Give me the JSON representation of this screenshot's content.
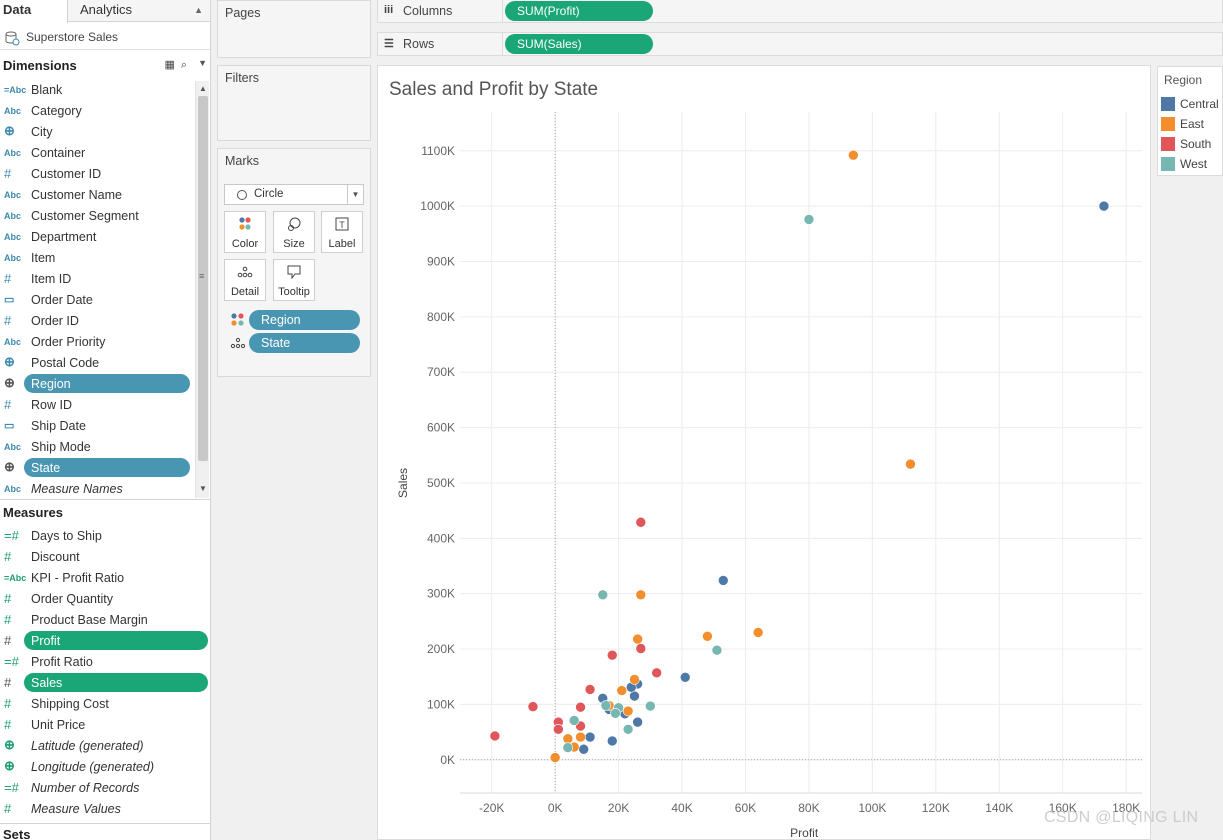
{
  "data_pane": {
    "tab_data": "Data",
    "tab_analytics": "Analytics",
    "datasource": "Superstore Sales",
    "dimensions_title": "Dimensions",
    "dimensions": [
      {
        "label": "Blank",
        "type": "=Abc"
      },
      {
        "label": "Category",
        "type": "Abc"
      },
      {
        "label": "City",
        "type": "globe"
      },
      {
        "label": "Container",
        "type": "Abc"
      },
      {
        "label": "Customer ID",
        "type": "#"
      },
      {
        "label": "Customer Name",
        "type": "Abc"
      },
      {
        "label": "Customer Segment",
        "type": "Abc"
      },
      {
        "label": "Department",
        "type": "Abc"
      },
      {
        "label": "Item",
        "type": "Abc"
      },
      {
        "label": "Item ID",
        "type": "#"
      },
      {
        "label": "Order Date",
        "type": "date"
      },
      {
        "label": "Order ID",
        "type": "#"
      },
      {
        "label": "Order Priority",
        "type": "Abc"
      },
      {
        "label": "Postal Code",
        "type": "globe"
      },
      {
        "label": "Region",
        "type": "globe",
        "selected": true
      },
      {
        "label": "Row ID",
        "type": "#"
      },
      {
        "label": "Ship Date",
        "type": "date"
      },
      {
        "label": "Ship Mode",
        "type": "Abc"
      },
      {
        "label": "State",
        "type": "globe",
        "selected": true
      },
      {
        "label": "Measure Names",
        "type": "Abc",
        "italic": true
      }
    ],
    "measures_title": "Measures",
    "measures": [
      {
        "label": "Days to Ship",
        "type": "=#"
      },
      {
        "label": "Discount",
        "type": "#"
      },
      {
        "label": "KPI - Profit Ratio",
        "type": "=Abc"
      },
      {
        "label": "Order Quantity",
        "type": "#"
      },
      {
        "label": "Product Base Margin",
        "type": "#"
      },
      {
        "label": "Profit",
        "type": "#",
        "selected": true
      },
      {
        "label": "Profit Ratio",
        "type": "=#"
      },
      {
        "label": "Sales",
        "type": "#",
        "selected": true
      },
      {
        "label": "Shipping Cost",
        "type": "#"
      },
      {
        "label": "Unit Price",
        "type": "#"
      },
      {
        "label": "Latitude (generated)",
        "type": "globe",
        "italic": true
      },
      {
        "label": "Longitude (generated)",
        "type": "globe",
        "italic": true
      },
      {
        "label": "Number of Records",
        "type": "=#",
        "italic": true
      },
      {
        "label": "Measure Values",
        "type": "#",
        "italic": true
      }
    ],
    "sets_title": "Sets"
  },
  "cards": {
    "pages": "Pages",
    "filters": "Filters",
    "marks": "Marks",
    "mark_type": "Circle",
    "buttons": {
      "color": "Color",
      "size": "Size",
      "label": "Label",
      "detail": "Detail",
      "tooltip": "Tooltip"
    },
    "mark_pills": [
      "Region",
      "State"
    ]
  },
  "shelves": {
    "columns_label": "Columns",
    "columns_pill": "SUM(Profit)",
    "rows_label": "Rows",
    "rows_pill": "SUM(Sales)"
  },
  "legend": {
    "title": "Region",
    "items": [
      {
        "name": "Central",
        "color": "#4e79a7"
      },
      {
        "name": "East",
        "color": "#f28e2b"
      },
      {
        "name": "South",
        "color": "#e15759"
      },
      {
        "name": "West",
        "color": "#76b7b2"
      }
    ]
  },
  "watermark": "CSDN @LIQING LIN",
  "chart_data": {
    "type": "scatter",
    "title": "Sales and Profit by State",
    "xlabel": "Profit",
    "ylabel": "Sales",
    "xlim": [
      -30,
      185
    ],
    "ylim": [
      -60,
      1170
    ],
    "x_ticks": [
      -20,
      0,
      20,
      40,
      60,
      80,
      100,
      120,
      140,
      160,
      180
    ],
    "x_tick_labels": [
      "-20K",
      "0K",
      "20K",
      "40K",
      "60K",
      "80K",
      "100K",
      "120K",
      "140K",
      "160K",
      "180K"
    ],
    "y_ticks": [
      0,
      100,
      200,
      300,
      400,
      500,
      600,
      700,
      800,
      900,
      1000,
      1100
    ],
    "y_tick_labels": [
      "0K",
      "100K",
      "200K",
      "300K",
      "400K",
      "500K",
      "600K",
      "700K",
      "800K",
      "900K",
      "1000K",
      "1100K"
    ],
    "units": "thousands",
    "grid": true,
    "series": [
      {
        "name": "Central",
        "color": "#4e79a7",
        "points": [
          [
            173,
            1000
          ],
          [
            53,
            324
          ],
          [
            41,
            149
          ],
          [
            25,
            115
          ],
          [
            15,
            111
          ],
          [
            26,
            137
          ],
          [
            24,
            131
          ],
          [
            17,
            91
          ],
          [
            22,
            83
          ],
          [
            26,
            68
          ],
          [
            11,
            41
          ],
          [
            18,
            34
          ],
          [
            9,
            19
          ]
        ]
      },
      {
        "name": "East",
        "color": "#f28e2b",
        "points": [
          [
            94,
            1092
          ],
          [
            112,
            534
          ],
          [
            27,
            298
          ],
          [
            64,
            230
          ],
          [
            48,
            223
          ],
          [
            26,
            218
          ],
          [
            25,
            145
          ],
          [
            21,
            125
          ],
          [
            17,
            98
          ],
          [
            23,
            88
          ],
          [
            8,
            41
          ],
          [
            4,
            38
          ],
          [
            6,
            23
          ],
          [
            0,
            4
          ]
        ]
      },
      {
        "name": "South",
        "color": "#e15759",
        "points": [
          [
            27,
            429
          ],
          [
            18,
            189
          ],
          [
            27,
            201
          ],
          [
            32,
            157
          ],
          [
            11,
            127
          ],
          [
            -7,
            96
          ],
          [
            8,
            95
          ],
          [
            8,
            61
          ],
          [
            1,
            68
          ],
          [
            1,
            55
          ],
          [
            -19,
            43
          ]
        ]
      },
      {
        "name": "West",
        "color": "#76b7b2",
        "points": [
          [
            80,
            976
          ],
          [
            15,
            298
          ],
          [
            51,
            198
          ],
          [
            30,
            97
          ],
          [
            20,
            94
          ],
          [
            16,
            98
          ],
          [
            19,
            84
          ],
          [
            6,
            71
          ],
          [
            23,
            55
          ],
          [
            4,
            22
          ]
        ]
      }
    ]
  }
}
